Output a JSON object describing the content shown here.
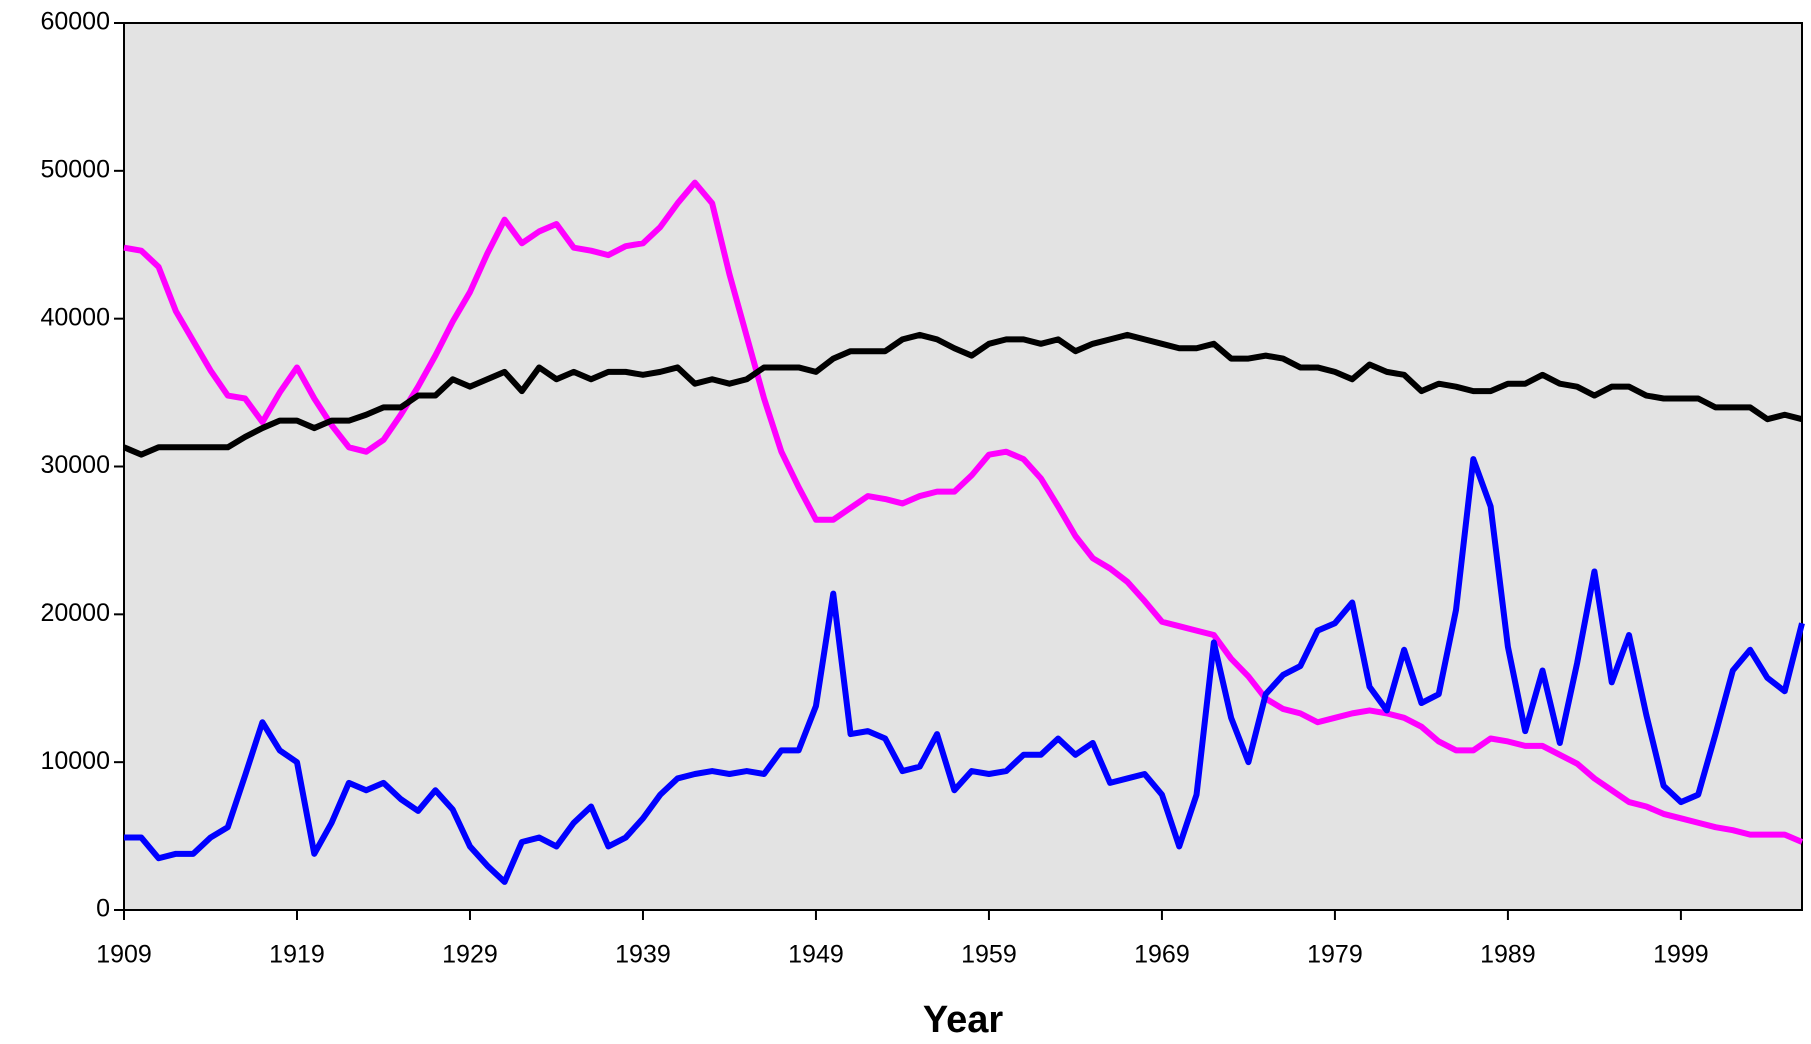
{
  "chart_data": {
    "type": "line",
    "x_label": "Year",
    "x": [
      1909,
      1910,
      1911,
      1912,
      1913,
      1914,
      1915,
      1916,
      1917,
      1918,
      1919,
      1920,
      1921,
      1922,
      1923,
      1924,
      1925,
      1926,
      1927,
      1928,
      1929,
      1930,
      1931,
      1932,
      1933,
      1934,
      1935,
      1936,
      1937,
      1938,
      1939,
      1940,
      1941,
      1942,
      1943,
      1944,
      1945,
      1946,
      1947,
      1948,
      1949,
      1950,
      1951,
      1952,
      1953,
      1954,
      1955,
      1956,
      1957,
      1958,
      1959,
      1960,
      1961,
      1962,
      1963,
      1964,
      1965,
      1966,
      1967,
      1968,
      1969,
      1970,
      1971,
      1972,
      1973,
      1974,
      1975,
      1976,
      1977,
      1978,
      1979,
      1980,
      1981,
      1982,
      1983,
      1984,
      1985,
      1986,
      1987,
      1988,
      1989,
      1990,
      1991,
      1992,
      1993,
      1994,
      1995,
      1996,
      1997,
      1998,
      1999,
      2000,
      2001,
      2002,
      2003,
      2004,
      2005,
      2006
    ],
    "series": [
      {
        "color": "#ff00ff",
        "values": [
          44800,
          44600,
          43500,
          40500,
          38500,
          36500,
          34800,
          34600,
          33000,
          35000,
          36700,
          34600,
          32800,
          31300,
          31000,
          31800,
          33500,
          35400,
          37500,
          39800,
          41800,
          44400,
          46700,
          45100,
          45900,
          46400,
          44800,
          44600,
          44300,
          44900,
          45100,
          46200,
          47800,
          49200,
          47800,
          43000,
          38800,
          34600,
          31000,
          28600,
          26400,
          26400,
          27200,
          28000,
          27800,
          27500,
          28000,
          28300,
          28300,
          29400,
          30800,
          31000,
          30500,
          29200,
          27300,
          25300,
          23800,
          23100,
          22200,
          20900,
          19500,
          19200,
          18900,
          18600,
          17000,
          15800,
          14300,
          13600,
          13300,
          12700,
          13000,
          13300,
          13500,
          13300,
          13000,
          12400,
          11400,
          10800,
          10800,
          11600,
          11400,
          11100,
          11100,
          10500,
          9900,
          8900,
          8100,
          7300,
          7000,
          6500,
          6200,
          5900,
          5600,
          5400,
          5100,
          5100,
          5100,
          4600
        ]
      },
      {
        "color": "#000000",
        "values": [
          31300,
          30800,
          31300,
          31300,
          31300,
          31300,
          31300,
          32000,
          32600,
          33100,
          33100,
          32600,
          33100,
          33100,
          33500,
          34000,
          34000,
          34800,
          34800,
          35900,
          35400,
          35900,
          36400,
          35100,
          36700,
          35900,
          36400,
          35900,
          36400,
          36400,
          36200,
          36400,
          36700,
          35600,
          35900,
          35600,
          35900,
          36700,
          36700,
          36700,
          36400,
          37300,
          37800,
          37800,
          37800,
          38600,
          38900,
          38600,
          38000,
          37500,
          38300,
          38600,
          38600,
          38300,
          38600,
          37800,
          38300,
          38600,
          38900,
          38600,
          38300,
          38000,
          38000,
          38300,
          37300,
          37300,
          37500,
          37300,
          36700,
          36700,
          36400,
          35900,
          36900,
          36400,
          36200,
          35100,
          35600,
          35400,
          35100,
          35100,
          35600,
          35600,
          36200,
          35600,
          35400,
          34800,
          35400,
          35400,
          34800,
          34600,
          34600,
          34600,
          34000,
          34000,
          34000,
          33200,
          33500,
          33200
        ]
      },
      {
        "color": "#0000ff",
        "values": [
          4900,
          4900,
          3500,
          3800,
          3800,
          4900,
          5600,
          9100,
          12700,
          10800,
          10000,
          3800,
          5900,
          8600,
          8100,
          8600,
          7500,
          6700,
          8100,
          6800,
          4300,
          3000,
          1900,
          4600,
          4900,
          4300,
          5900,
          7000,
          4300,
          4900,
          6200,
          7800,
          8900,
          9200,
          9400,
          9200,
          9400,
          9200,
          10800,
          10800,
          13800,
          21400,
          11900,
          12100,
          11600,
          9400,
          9700,
          11900,
          8100,
          9400,
          9200,
          9400,
          10500,
          10500,
          11600,
          10500,
          11300,
          8600,
          8900,
          9200,
          7800,
          4300,
          7800,
          18100,
          13000,
          10000,
          14600,
          15900,
          16500,
          18900,
          19400,
          20800,
          15100,
          13500,
          17600,
          14000,
          14600,
          20300,
          30500,
          27300,
          17800,
          12100,
          16200,
          11300,
          16700,
          22900,
          15400,
          18600,
          13200,
          8400,
          7300,
          7800,
          11900,
          16200,
          17600,
          15700,
          14800,
          19400
        ]
      }
    ],
    "xlim": [
      1909,
      2006
    ],
    "xticks": [
      1909,
      1919,
      1929,
      1939,
      1949,
      1959,
      1969,
      1979,
      1989,
      1999
    ],
    "ylim": [
      0,
      60000
    ],
    "yticks": [
      0,
      10000,
      20000,
      30000,
      40000,
      50000,
      60000
    ]
  }
}
